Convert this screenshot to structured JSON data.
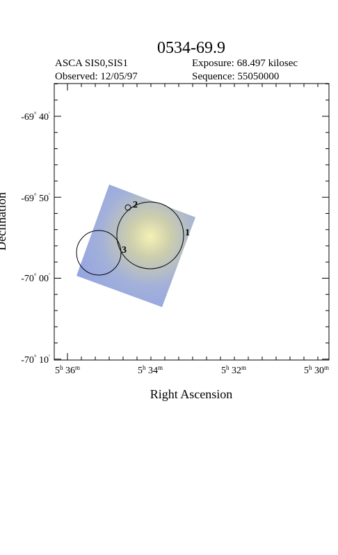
{
  "title": "0534-69.9",
  "header": {
    "instrument": "ASCA SIS0,SIS1",
    "exposure": "Exposure: 68.497 kilosec",
    "observed": "Observed: 12/05/97",
    "sequence": "Sequence: 55050000"
  },
  "x_label": "Right Ascension",
  "y_label": "Declination",
  "ra_ticks": [
    [
      "5",
      "h",
      " 36",
      "m"
    ],
    [
      "5",
      "h",
      " 34",
      "m"
    ],
    [
      "5",
      "h",
      " 32",
      "m"
    ],
    [
      "5",
      "h",
      " 30",
      "m"
    ]
  ],
  "dec_ticks": [
    [
      "-69",
      "°",
      " 40",
      "′"
    ],
    [
      "-69",
      "°",
      " 50",
      "′"
    ],
    [
      "-70",
      "°",
      " 00",
      "′"
    ],
    [
      "-70",
      "°",
      " 10",
      "′"
    ]
  ],
  "regions": [
    "1",
    "2",
    "3"
  ]
}
